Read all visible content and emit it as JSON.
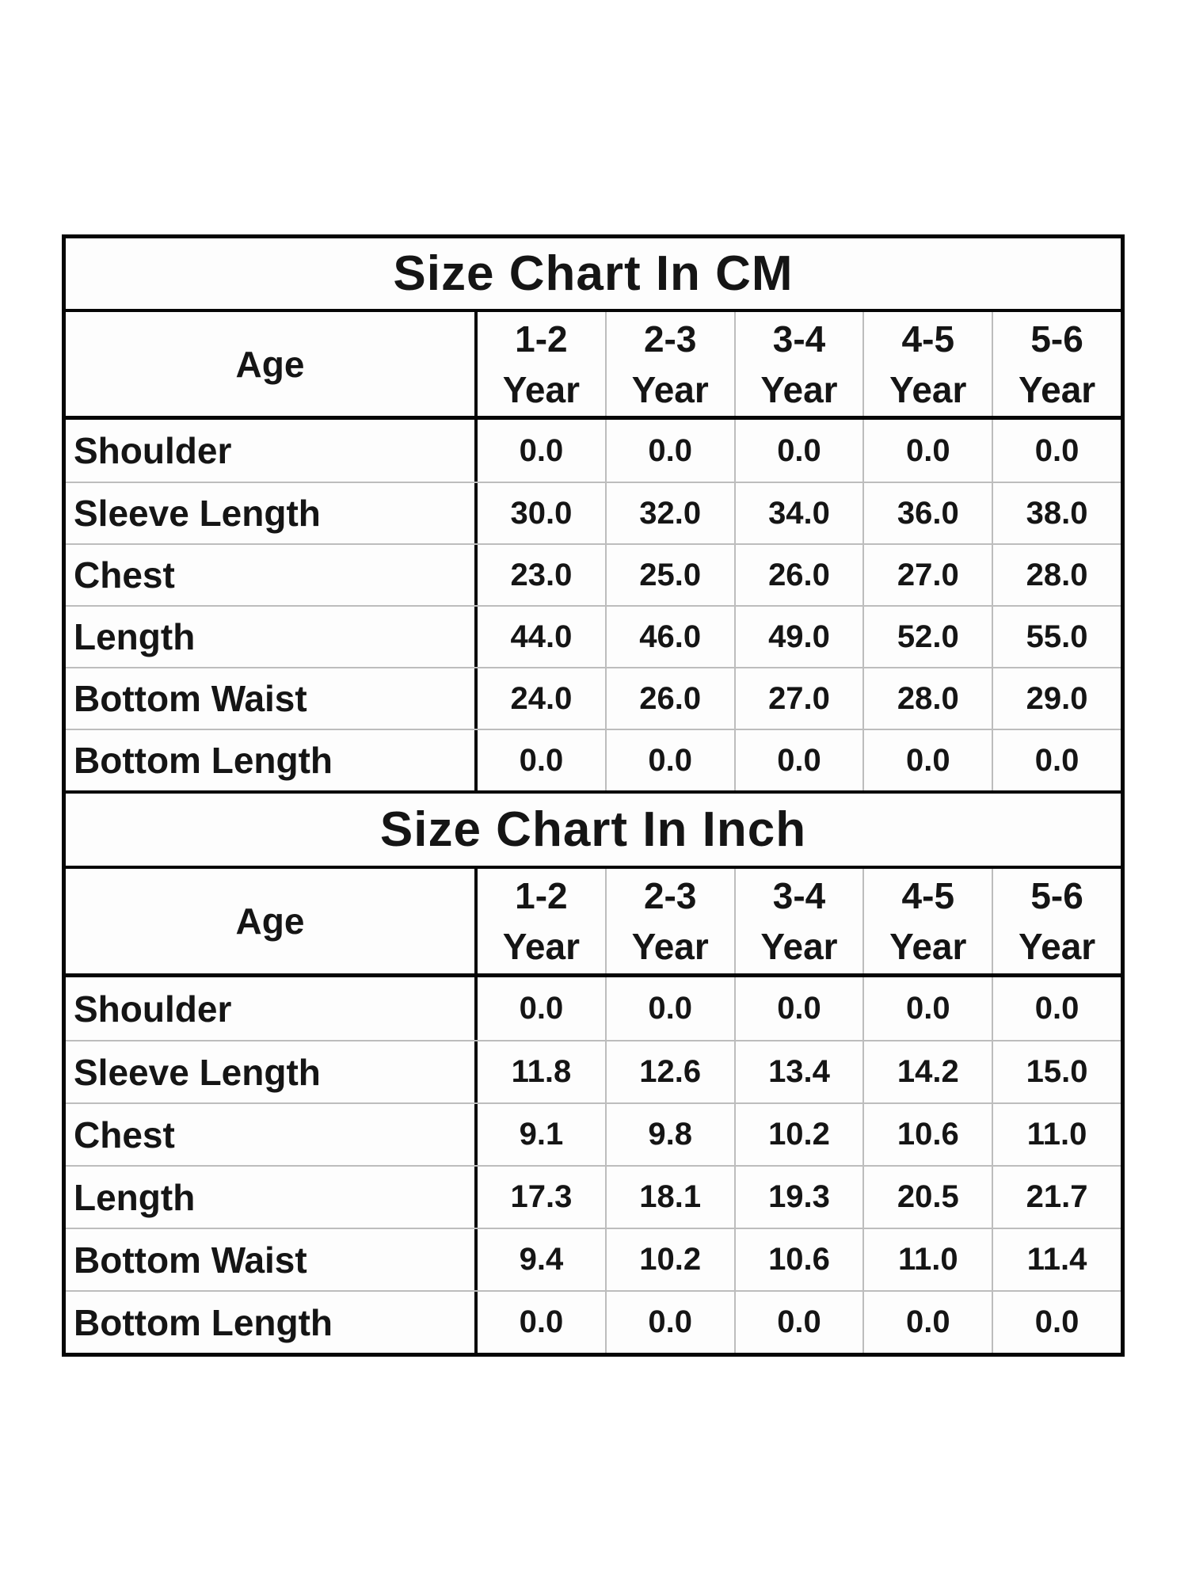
{
  "colors": {
    "background": "#ffffff",
    "strong_border": "#060606",
    "light_gridline": "#bdbdbd",
    "text": "#151515"
  },
  "chart_data": [
    {
      "type": "table",
      "title": "Size Chart In CM",
      "corner_label": "Age",
      "column_headers": [
        {
          "range": "1-2",
          "unit": "Year"
        },
        {
          "range": "2-3",
          "unit": "Year"
        },
        {
          "range": "3-4",
          "unit": "Year"
        },
        {
          "range": "4-5",
          "unit": "Year"
        },
        {
          "range": "5-6",
          "unit": "Year"
        }
      ],
      "rows": [
        {
          "label": "Shoulder",
          "values": [
            "0.0",
            "0.0",
            "0.0",
            "0.0",
            "0.0"
          ]
        },
        {
          "label": "Sleeve Length",
          "values": [
            "30.0",
            "32.0",
            "34.0",
            "36.0",
            "38.0"
          ]
        },
        {
          "label": "Chest",
          "values": [
            "23.0",
            "25.0",
            "26.0",
            "27.0",
            "28.0"
          ]
        },
        {
          "label": "Length",
          "values": [
            "44.0",
            "46.0",
            "49.0",
            "52.0",
            "55.0"
          ]
        },
        {
          "label": "Bottom Waist",
          "values": [
            "24.0",
            "26.0",
            "27.0",
            "28.0",
            "29.0"
          ]
        },
        {
          "label": "Bottom Length",
          "values": [
            "0.0",
            "0.0",
            "0.0",
            "0.0",
            "0.0"
          ]
        }
      ]
    },
    {
      "type": "table",
      "title": "Size Chart In Inch",
      "corner_label": "Age",
      "column_headers": [
        {
          "range": "1-2",
          "unit": "Year"
        },
        {
          "range": "2-3",
          "unit": "Year"
        },
        {
          "range": "3-4",
          "unit": "Year"
        },
        {
          "range": "4-5",
          "unit": "Year"
        },
        {
          "range": "5-6",
          "unit": "Year"
        }
      ],
      "rows": [
        {
          "label": "Shoulder",
          "values": [
            "0.0",
            "0.0",
            "0.0",
            "0.0",
            "0.0"
          ]
        },
        {
          "label": "Sleeve Length",
          "values": [
            "11.8",
            "12.6",
            "13.4",
            "14.2",
            "15.0"
          ]
        },
        {
          "label": "Chest",
          "values": [
            "9.1",
            "9.8",
            "10.2",
            "10.6",
            "11.0"
          ]
        },
        {
          "label": "Length",
          "values": [
            "17.3",
            "18.1",
            "19.3",
            "20.5",
            "21.7"
          ]
        },
        {
          "label": "Bottom Waist",
          "values": [
            "9.4",
            "10.2",
            "10.6",
            "11.0",
            "11.4"
          ]
        },
        {
          "label": "Bottom Length",
          "values": [
            "0.0",
            "0.0",
            "0.0",
            "0.0",
            "0.0"
          ]
        }
      ]
    }
  ]
}
